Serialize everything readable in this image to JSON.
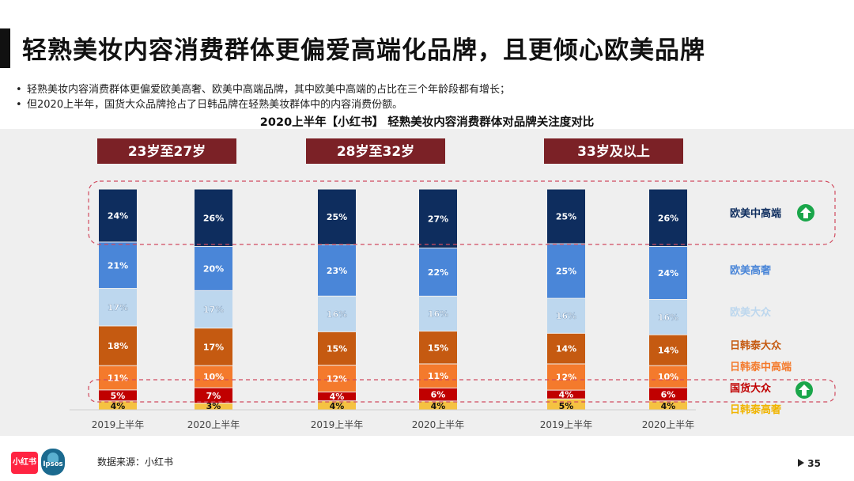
{
  "title": "轻熟美妆内容消费群体更偏爱高端化品牌，且更倾心欧美品牌",
  "bullets": [
    "轻熟美妆内容消费群体更偏爱欧美高奢、欧美中高端品牌，其中欧美中高端的占比在三个年龄段都有增长；",
    "但2020上半年，国货大众品牌抢占了日韩品牌在轻熟美妆群体中的内容消费份额。"
  ],
  "bullet_mark": "•",
  "subtitle": "2020上半年【小红书】 轻熟美妆内容消费群体对品牌关注度对比",
  "footer": {
    "source": "数据来源：小红书",
    "page": "35",
    "logo_xhs": "小红书",
    "logo_ipsos": "Ipsos"
  },
  "colors": {
    "panel_bg": "#efefef",
    "header_bg": "#7b2126",
    "highlight_box": "#d14b5f",
    "up_arrow": "#1aa64a"
  },
  "chart_data": {
    "type": "bar",
    "stacked": true,
    "percent_stacked": true,
    "groups": [
      "23岁至27岁",
      "28岁至32岁",
      "33岁及以上"
    ],
    "categories": [
      "2019上半年",
      "2020上半年"
    ],
    "series": [
      {
        "name": "日韩泰高奢",
        "color": "#f5c242",
        "text_color": "#f0b400",
        "values": [
          [
            4,
            3
          ],
          [
            4,
            4
          ],
          [
            5,
            4
          ]
        ],
        "labels": [
          [
            "4%",
            "3%"
          ],
          [
            "4%",
            "4%"
          ],
          [
            "5%",
            "4%"
          ]
        ]
      },
      {
        "name": "国货大众",
        "color": "#c00000",
        "text_color": "#c00000",
        "values": [
          [
            5,
            7
          ],
          [
            4,
            6
          ],
          [
            4,
            6
          ]
        ],
        "labels": [
          [
            "5%",
            "7%"
          ],
          [
            "4%",
            "6%"
          ],
          [
            "4%",
            "6%"
          ]
        ]
      },
      {
        "name": "日韩泰中高端",
        "color": "#f47a2c",
        "text_color": "#f47a2c",
        "values": [
          [
            11,
            10
          ],
          [
            12,
            11
          ],
          [
            12,
            10
          ]
        ],
        "labels": [
          [
            "11%",
            "10%"
          ],
          [
            "12%",
            "11%"
          ],
          [
            "12%",
            "10%"
          ]
        ]
      },
      {
        "name": "日韩泰大众",
        "color": "#c55a11",
        "text_color": "#c55a11",
        "values": [
          [
            18,
            17
          ],
          [
            15,
            15
          ],
          [
            14,
            14
          ]
        ],
        "labels": [
          [
            "18%",
            "17%"
          ],
          [
            "15%",
            "15%"
          ],
          [
            "14%",
            "14%"
          ]
        ]
      },
      {
        "name": "欧美大众",
        "color": "#bdd7ee",
        "text_color": "#bdd7ee",
        "values": [
          [
            17,
            17
          ],
          [
            16,
            16
          ],
          [
            16,
            16
          ]
        ],
        "labels": [
          [
            "17%",
            "17%"
          ],
          [
            "16%",
            "16%"
          ],
          [
            "16%",
            "16%"
          ]
        ]
      },
      {
        "name": "欧美高奢",
        "color": "#4a86d8",
        "text_color": "#4a86d8",
        "values": [
          [
            21,
            20
          ],
          [
            23,
            22
          ],
          [
            25,
            24
          ]
        ],
        "labels": [
          [
            "21%",
            "20%"
          ],
          [
            "23%",
            "22%"
          ],
          [
            "25%",
            "24%"
          ]
        ]
      },
      {
        "name": "欧美中高端",
        "color": "#0e2d5e",
        "text_color": "#0e2d5e",
        "values": [
          [
            24,
            26
          ],
          [
            25,
            27
          ],
          [
            25,
            26
          ]
        ],
        "labels": [
          [
            "24%",
            "26%"
          ],
          [
            "25%",
            "27%"
          ],
          [
            "25%",
            "26%"
          ]
        ]
      }
    ],
    "highlighted_series": [
      "欧美中高端",
      "国货大众"
    ],
    "ylim": [
      0,
      100
    ]
  }
}
